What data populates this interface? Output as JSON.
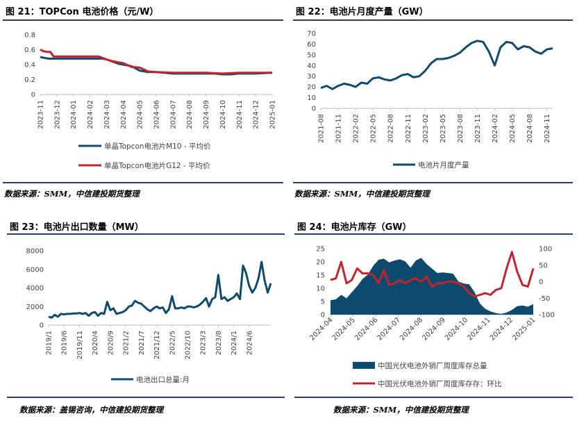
{
  "panels": {
    "p21": {
      "title": "图 21：TOPCon 电池价格（元/W）",
      "source": "数据来源：SMM，中信建投期货整理"
    },
    "p22": {
      "title": "图 22：电池片月度产量（GW）",
      "source": "数据来源：SMM，中信建投期货整理"
    },
    "p23": {
      "title": "图 23：电池片出口数量（MW）",
      "source": "数据来源：盖锡咨询，中信建投期货整理"
    },
    "p24": {
      "title": "图 24：电池片库存（GW）",
      "source": "数据来源：SMM，中信建投期货整理"
    }
  },
  "chart_data": [
    {
      "id": "c21",
      "type": "line",
      "title": "图 21：TOPCon 电池价格（元/W）",
      "x_labels": [
        "2023-11",
        "2023-12",
        "2024-01",
        "2024-02",
        "2024-03",
        "2024-04",
        "2024-05",
        "2024-06",
        "2024-07",
        "2024-08",
        "2024-09",
        "2024-10",
        "2024-11",
        "2024-12",
        "2025-01"
      ],
      "ylim": [
        0,
        0.8
      ],
      "yticks": [
        0,
        0.2,
        0.4,
        0.6,
        0.8
      ],
      "y_tick_labels": [
        "0",
        "0.2",
        "0.4",
        "0.6",
        "0.8"
      ],
      "legend_position": "bottom",
      "colors": [
        "#0e4a6e",
        "#c0242d"
      ],
      "series": [
        {
          "name": "单晶Topcon电池片M10 - 平均价",
          "x": [
            0,
            0.25,
            0.5,
            1,
            1.5,
            2,
            2.5,
            3,
            3.25,
            3.5,
            3.75,
            4,
            4.25,
            4.5,
            4.75,
            5,
            5.5,
            6,
            6.5,
            7,
            8,
            9,
            10,
            10.5,
            11,
            11.5,
            12,
            13,
            14
          ],
          "y": [
            0.5,
            0.49,
            0.48,
            0.48,
            0.48,
            0.48,
            0.48,
            0.48,
            0.48,
            0.48,
            0.48,
            0.47,
            0.45,
            0.43,
            0.41,
            0.4,
            0.38,
            0.32,
            0.3,
            0.3,
            0.28,
            0.28,
            0.28,
            0.28,
            0.27,
            0.27,
            0.28,
            0.28,
            0.29
          ]
        },
        {
          "name": "单晶Topcon电池片G12 - 平均价",
          "x": [
            0,
            0.2,
            0.4,
            0.6,
            0.8,
            1,
            1.5,
            2,
            2.5,
            3,
            3.25,
            3.5,
            3.75,
            4,
            4.25,
            4.5,
            4.75,
            5,
            5.5,
            6,
            6.5,
            7,
            8,
            9,
            10,
            11,
            12,
            13,
            14
          ],
          "y": [
            0.6,
            0.58,
            0.57,
            0.57,
            0.51,
            0.51,
            0.51,
            0.51,
            0.51,
            0.51,
            0.51,
            0.51,
            0.49,
            0.47,
            0.45,
            0.44,
            0.43,
            0.42,
            0.37,
            0.36,
            0.31,
            0.3,
            0.29,
            0.29,
            0.29,
            0.28,
            0.29,
            0.29,
            0.29
          ]
        }
      ]
    },
    {
      "id": "c22",
      "type": "line",
      "title": "图 22：电池片月度产量（GW）",
      "x_labels": [
        "2021-08",
        "2021-11",
        "2022-02",
        "2022-05",
        "2022-08",
        "2022-11",
        "2023-02",
        "2023-05",
        "2023-08",
        "2023-11",
        "2024-02",
        "2024-05",
        "2024-08",
        "2024-11"
      ],
      "ylim": [
        0,
        70
      ],
      "yticks": [
        0,
        10,
        20,
        30,
        40,
        50,
        60,
        70
      ],
      "y_tick_labels": [
        "0",
        "10",
        "20",
        "30",
        "40",
        "50",
        "60",
        "70"
      ],
      "legend_position": "bottom",
      "colors": [
        "#0e4a6e"
      ],
      "series": [
        {
          "name": "电池片月度产量",
          "y": [
            19,
            21,
            18,
            21,
            23,
            22,
            20,
            24,
            23,
            28,
            29,
            27,
            26,
            28,
            31,
            32,
            29,
            30,
            35,
            42,
            46,
            46,
            47,
            49,
            52,
            57,
            61,
            63,
            62,
            53,
            40,
            57,
            62,
            61,
            55,
            58,
            57,
            53,
            51,
            55,
            56
          ]
        }
      ]
    },
    {
      "id": "c23",
      "type": "line",
      "title": "图 23：电池片出口数量（MW）",
      "x_labels": [
        "2019/1",
        "2019/6",
        "2019/11",
        "2020/4",
        "2020/9",
        "2021/2",
        "2021/7",
        "2021/12",
        "2022/5",
        "2022/10",
        "2023/3",
        "2023/8",
        "2024/1",
        "2024/6"
      ],
      "ylim": [
        0,
        8000
      ],
      "yticks": [
        0,
        2000,
        4000,
        6000,
        8000
      ],
      "y_tick_labels": [
        "0",
        "2000",
        "4000",
        "6000",
        "8000"
      ],
      "legend_position": "bottom",
      "colors": [
        "#0e4a6e"
      ],
      "series": [
        {
          "name": "电池出口总量:月",
          "y": [
            900,
            800,
            1100,
            900,
            1200,
            1150,
            1200,
            1200,
            1250,
            1250,
            1300,
            1200,
            1300,
            1000,
            1300,
            1400,
            1000,
            1300,
            1200,
            2500,
            1600,
            1800,
            1200,
            1300,
            1400,
            1600,
            2000,
            2100,
            2600,
            2400,
            2300,
            2000,
            1700,
            1500,
            1800,
            2000,
            1800,
            1900,
            1300,
            1700,
            3100,
            1800,
            1800,
            1900,
            1800,
            2000,
            2000,
            1900,
            2000,
            2200,
            2500,
            2900,
            2000,
            2800,
            3000,
            5400,
            2800,
            3000,
            2600,
            2800,
            3000,
            3400,
            2800,
            6400,
            5600,
            4200,
            3500,
            4000,
            5000,
            6800,
            4800,
            3500,
            4500
          ]
        }
      ]
    },
    {
      "id": "c24",
      "type": "bar+line",
      "title": "图 24：电池片库存（GW）",
      "x_labels": [
        "2024-04",
        "2024-05",
        "2024-06",
        "2024-07",
        "2024-08",
        "2024-09",
        "2024-10",
        "2024-11",
        "2024-12",
        "2025-01"
      ],
      "ylim_left": [
        0,
        25
      ],
      "yticks_left": [
        0,
        5,
        10,
        15,
        20,
        25
      ],
      "y_tick_labels_left": [
        "0",
        "5",
        "10",
        "15",
        "20",
        "25"
      ],
      "ylim_right": [
        -100,
        100
      ],
      "yticks_right": [
        -100,
        -50,
        0,
        50,
        100
      ],
      "y_tick_labels_right": [
        "-100",
        "-50",
        "0",
        "50",
        "100"
      ],
      "legend_position": "bottom",
      "colors": [
        "#0e4a6e",
        "#c0242d"
      ],
      "series": [
        {
          "name": "中国光伏电池外销厂周度库存总量",
          "axis": "left",
          "kind": "area",
          "y": [
            5.5,
            5.8,
            7.5,
            6.2,
            8.5,
            10.8,
            13.5,
            15.2,
            18.5,
            20.8,
            21.2,
            19.8,
            20.5,
            21,
            20.2,
            17.8,
            20.5,
            21.5,
            19.2,
            17.5,
            15.8,
            16,
            15.8,
            15.5,
            12.5,
            11.8,
            11.5,
            8.5,
            4.2,
            2.2,
            1.2,
            0.6,
            0.3,
            0.8,
            1.8,
            3.2,
            3.5,
            3,
            4
          ]
        },
        {
          "name": "中国光伏电池外销厂周度库存存：环比",
          "axis": "right",
          "kind": "line",
          "y": [
            5,
            10,
            60,
            -5,
            5,
            40,
            25,
            25,
            20,
            -5,
            35,
            -10,
            -5,
            5,
            -5,
            5,
            10,
            0,
            15,
            -15,
            -5,
            -5,
            0,
            0,
            -5,
            -15,
            -35,
            -45,
            -40,
            -35,
            -40,
            -25,
            -20,
            40,
            90,
            30,
            -10,
            -15,
            40
          ]
        }
      ]
    }
  ]
}
